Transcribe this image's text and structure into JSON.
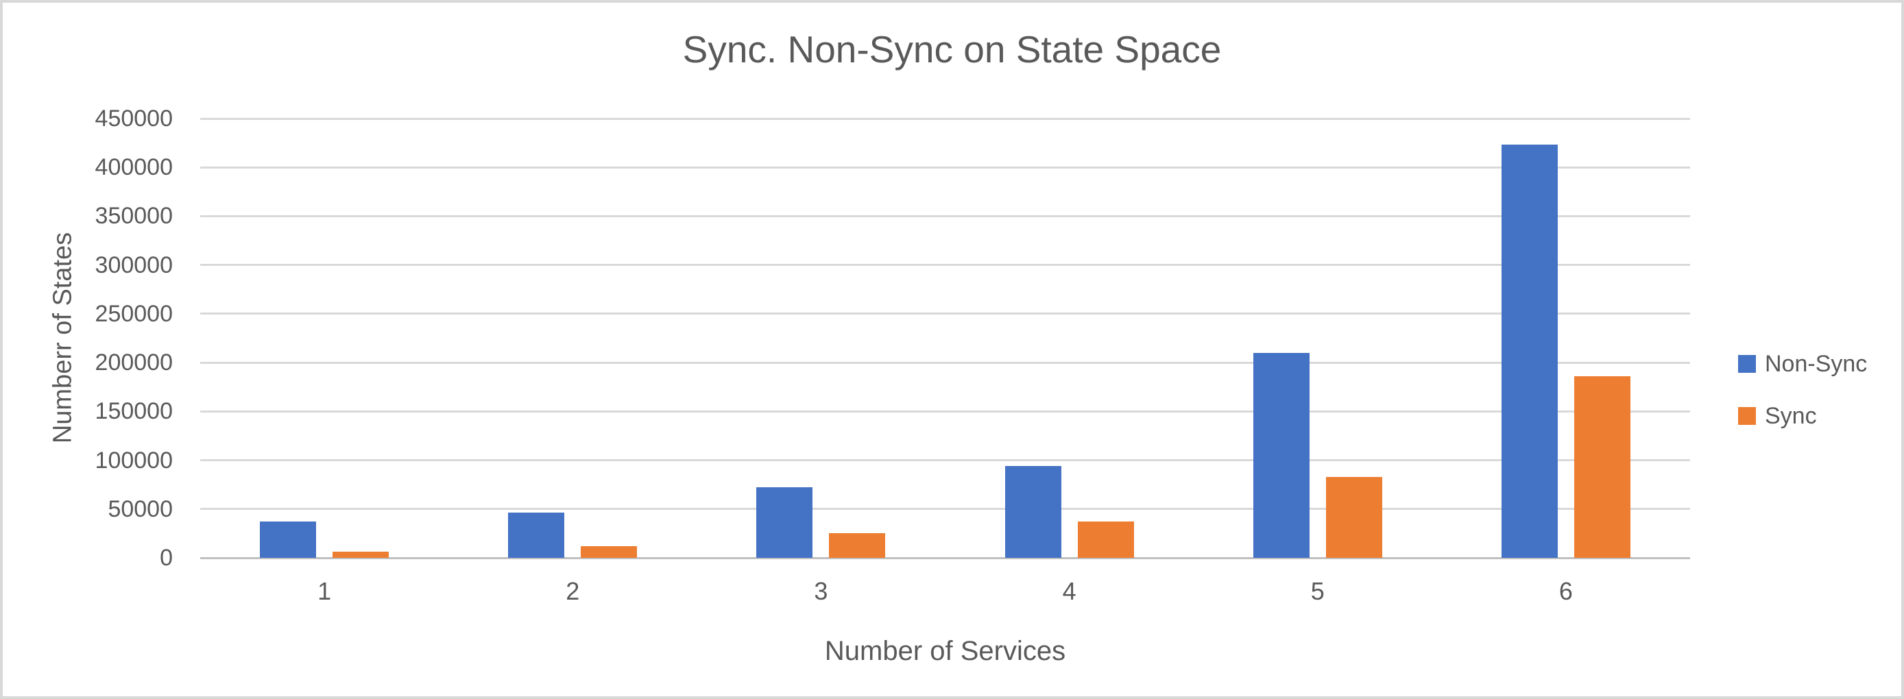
{
  "chart_data": {
    "type": "bar",
    "title": "Sync. Non-Sync on State Space",
    "xlabel": "Number of Services",
    "ylabel": "Numberr of States",
    "categories": [
      "1",
      "2",
      "3",
      "4",
      "5",
      "6"
    ],
    "series": [
      {
        "name": "Non-Sync",
        "color": "#4472C4",
        "values": [
          37000,
          46000,
          72000,
          94000,
          210000,
          423000
        ]
      },
      {
        "name": "Sync",
        "color": "#ED7D31",
        "values": [
          6000,
          12000,
          25000,
          37000,
          83000,
          186000
        ]
      }
    ],
    "ylim": [
      0,
      450000
    ],
    "ytick_step": 50000,
    "ytick_labels": [
      "0",
      "50000",
      "100000",
      "150000",
      "200000",
      "250000",
      "300000",
      "350000",
      "400000",
      "450000"
    ],
    "grid": "horizontal",
    "legend_position": "right"
  },
  "colors": {
    "gridline": "#D9D9D9",
    "axis_line": "#BFBFBF",
    "text": "#595959",
    "frame": "#D8D8D8",
    "background": "#FFFFFF"
  }
}
